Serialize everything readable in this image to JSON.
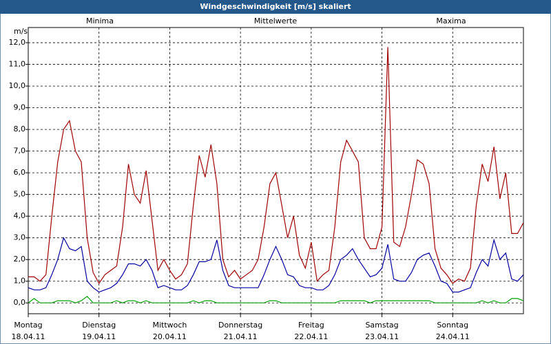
{
  "chart_data": {
    "type": "line",
    "title": "Windgeschwindigkeit [m/s] skaliert",
    "ylabel": "m/s",
    "x": [
      0,
      2,
      4,
      6,
      8,
      10,
      12,
      14,
      16,
      18,
      20,
      22,
      24,
      26,
      28,
      30,
      32,
      34,
      36,
      38,
      40,
      42,
      44,
      46,
      48,
      50,
      52,
      54,
      56,
      58,
      60,
      62,
      64,
      66,
      68,
      70,
      72,
      74,
      76,
      78,
      80,
      82,
      84,
      86,
      88,
      90,
      92,
      94,
      96,
      98,
      100,
      102,
      104,
      106,
      108,
      110,
      112,
      114,
      116,
      118,
      120,
      122,
      124,
      126,
      128,
      130,
      132,
      134,
      136,
      138,
      140,
      142,
      144,
      146,
      148,
      150,
      152,
      154,
      156,
      158,
      160,
      162,
      164,
      166,
      168
    ],
    "xlim": [
      0,
      168
    ],
    "xticks": [
      {
        "value": 0,
        "label": [
          "Montag",
          "18.04.11"
        ]
      },
      {
        "value": 24,
        "label": [
          "Dienstag",
          "19.04.11"
        ]
      },
      {
        "value": 48,
        "label": [
          "Mittwoch",
          "20.04.11"
        ]
      },
      {
        "value": 72,
        "label": [
          "Donnerstag",
          "21.04.11"
        ]
      },
      {
        "value": 96,
        "label": [
          "Freitag",
          "22.04.11"
        ]
      },
      {
        "value": 120,
        "label": [
          "Samstag",
          "23.04.11"
        ]
      },
      {
        "value": 144,
        "label": [
          "Sonntag",
          "24.04.11"
        ]
      }
    ],
    "ylim": [
      -0.5,
      12.7
    ],
    "yticks": [
      {
        "value": 0,
        "label": "0,0"
      },
      {
        "value": 1,
        "label": "1,0"
      },
      {
        "value": 2,
        "label": "2,0"
      },
      {
        "value": 3,
        "label": "3,0"
      },
      {
        "value": 4,
        "label": "4,0"
      },
      {
        "value": 5,
        "label": "5,0"
      },
      {
        "value": 6,
        "label": "6,0"
      },
      {
        "value": 7,
        "label": "7,0"
      },
      {
        "value": 8,
        "label": "8,0"
      },
      {
        "value": 9,
        "label": "9,0"
      },
      {
        "value": 10,
        "label": "10,0"
      },
      {
        "value": 11,
        "label": "11,0"
      },
      {
        "value": 12,
        "label": "12,0"
      }
    ],
    "grid": true,
    "series": [
      {
        "name": "Minima",
        "color": "#00a000",
        "values": [
          0,
          0.2,
          0,
          0,
          0,
          0.1,
          0.1,
          0.1,
          0,
          0.1,
          0.3,
          0,
          0,
          0,
          0,
          0.1,
          0,
          0.1,
          0.1,
          0,
          0.1,
          0,
          0,
          0,
          0,
          0,
          0,
          0,
          0.1,
          0,
          0.1,
          0.1,
          0,
          0,
          0,
          0,
          0,
          0,
          0,
          0,
          0,
          0.1,
          0.1,
          0,
          0,
          0,
          0,
          0,
          0,
          0,
          0,
          0,
          0,
          0.1,
          0.1,
          0.1,
          0.1,
          0.1,
          0,
          0.1,
          0.1,
          0.1,
          0.1,
          0.1,
          0.1,
          0.1,
          0.1,
          0.1,
          0.1,
          0,
          0,
          0,
          0,
          0,
          0,
          0,
          0,
          0.1,
          0,
          0.1,
          0,
          0,
          0.2,
          0.2,
          0.1
        ]
      },
      {
        "name": "Mittelwerte",
        "color": "#0000a0",
        "values": [
          0.7,
          0.6,
          0.6,
          0.7,
          1.3,
          2.0,
          3.0,
          2.5,
          2.4,
          2.6,
          1.0,
          0.7,
          0.5,
          0.6,
          0.7,
          0.9,
          1.3,
          1.8,
          1.8,
          1.7,
          2.0,
          1.5,
          0.7,
          0.8,
          0.7,
          0.6,
          0.6,
          0.8,
          1.3,
          1.9,
          1.9,
          2.0,
          2.9,
          1.5,
          0.8,
          0.7,
          0.7,
          0.7,
          0.7,
          0.7,
          1.3,
          2.0,
          2.6,
          2.0,
          1.3,
          1.2,
          0.8,
          0.7,
          0.7,
          0.6,
          0.6,
          0.8,
          1.3,
          2.0,
          2.2,
          2.5,
          2.0,
          1.6,
          1.2,
          1.3,
          1.6,
          2.7,
          1.1,
          1.0,
          1.0,
          1.4,
          2.0,
          2.2,
          2.3,
          1.7,
          1.0,
          0.9,
          0.5,
          0.5,
          0.6,
          0.7,
          1.4,
          2.0,
          1.7,
          2.9,
          2.0,
          2.3,
          1.1,
          1.0,
          1.3
        ]
      },
      {
        "name": "Maxima",
        "color": "#a00000",
        "values": [
          1.2,
          1.2,
          1.0,
          1.3,
          4.0,
          6.5,
          8.0,
          8.4,
          7.0,
          6.5,
          3.0,
          1.4,
          0.9,
          1.3,
          1.5,
          1.7,
          3.5,
          6.4,
          5.0,
          4.6,
          6.1,
          3.8,
          1.5,
          2.0,
          1.5,
          1.1,
          1.3,
          1.8,
          4.5,
          6.8,
          5.8,
          7.3,
          5.5,
          2.0,
          1.2,
          1.5,
          1.1,
          1.3,
          1.5,
          2.0,
          3.5,
          5.5,
          6.0,
          4.5,
          3.0,
          4.0,
          2.2,
          1.6,
          2.8,
          1.0,
          1.3,
          1.5,
          3.5,
          6.5,
          7.5,
          7.0,
          6.5,
          3.0,
          2.5,
          2.5,
          3.5,
          11.8,
          2.8,
          2.6,
          3.5,
          5.0,
          6.6,
          6.4,
          5.5,
          2.5,
          1.6,
          1.3,
          0.9,
          1.1,
          1.0,
          1.6,
          4.5,
          6.4,
          5.6,
          7.2,
          4.8,
          6.0,
          3.2,
          3.2,
          3.7
        ]
      }
    ]
  }
}
